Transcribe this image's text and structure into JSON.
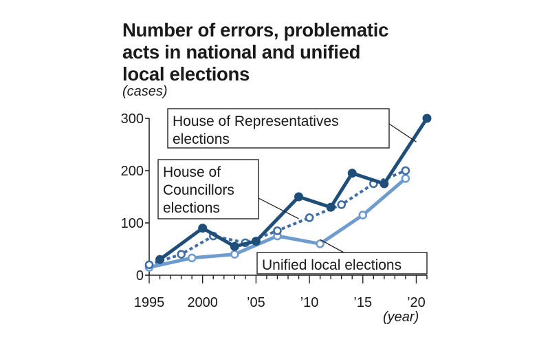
{
  "chart_data": {
    "type": "line",
    "title_lines": [
      "Number of errors, problematic",
      "acts in national and unified",
      "local elections"
    ],
    "ylabel": "(cases)",
    "xlabel": "(year)",
    "xlim": [
      1995,
      2021
    ],
    "ylim": [
      0,
      300
    ],
    "y_ticks": [
      0,
      100,
      200,
      300
    ],
    "x_ticks": [
      {
        "value": 1995,
        "label": "1995"
      },
      {
        "value": 2000,
        "label": "2000"
      },
      {
        "value": 2005,
        "label": "’05"
      },
      {
        "value": 2010,
        "label": "’10"
      },
      {
        "value": 2015,
        "label": "’15"
      },
      {
        "value": 2020,
        "label": "’20"
      }
    ],
    "series": [
      {
        "name": "House of Representatives elections",
        "label_lines": [
          "House of Representatives",
          "elections"
        ],
        "color": "#1f4e79",
        "marker": "filled",
        "line_style": "solid",
        "x": [
          1996,
          2000,
          2003,
          2005,
          2009,
          2012,
          2014,
          2017,
          2021
        ],
        "values": [
          30,
          90,
          55,
          65,
          150,
          130,
          195,
          175,
          300
        ]
      },
      {
        "name": "House of Councillors elections",
        "label_lines": [
          "House of",
          "Councillors",
          "elections"
        ],
        "color": "#3f6ea5",
        "marker": "hollow",
        "line_style": "dashed",
        "x": [
          1995,
          1998,
          2001,
          2004,
          2007,
          2010,
          2013,
          2016,
          2019
        ],
        "values": [
          20,
          40,
          75,
          62,
          85,
          110,
          135,
          175,
          200
        ]
      },
      {
        "name": "Unified local elections",
        "label_lines": [
          "Unified local elections"
        ],
        "color": "#6f9ccf",
        "marker": "hollow",
        "line_style": "solid",
        "x": [
          1995,
          1999,
          2003,
          2007,
          2011,
          2015,
          2019
        ],
        "values": [
          15,
          33,
          40,
          75,
          60,
          115,
          185
        ]
      }
    ]
  }
}
